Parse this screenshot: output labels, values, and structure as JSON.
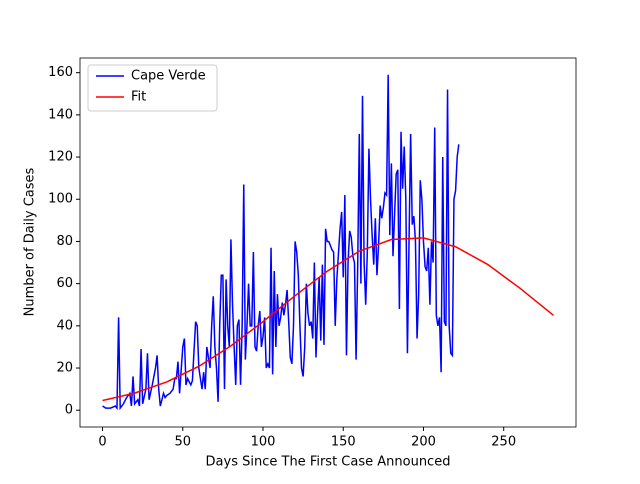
{
  "chart_data": {
    "type": "line",
    "xlabel": "Days Since The First Case Announced",
    "ylabel": "Number of Daily Cases",
    "xlim": [
      -14.05,
      295.05
    ],
    "ylim": [
      -7.95,
      166.95
    ],
    "xticks": [
      0,
      50,
      100,
      150,
      200,
      250
    ],
    "yticks": [
      0,
      20,
      40,
      60,
      80,
      100,
      120,
      140,
      160
    ],
    "legend": "upper left",
    "series": [
      {
        "name": "Cape Verde",
        "color": "#0000ff",
        "x": [
          0,
          2,
          5,
          8,
          9,
          10,
          11,
          13,
          15,
          17,
          18,
          19,
          20,
          22,
          23,
          24,
          25,
          27,
          28,
          29,
          31,
          33,
          34,
          35,
          36,
          38,
          39,
          40,
          42,
          44,
          45,
          46,
          47,
          48,
          50,
          51,
          52,
          53,
          55,
          56,
          58,
          59,
          60,
          61,
          62,
          63,
          64,
          65,
          66,
          67,
          68,
          69,
          70,
          71,
          72,
          73,
          74,
          75,
          76,
          77,
          78,
          79,
          80,
          81,
          82,
          83,
          84,
          85,
          86,
          87,
          88,
          89,
          90,
          91,
          92,
          93,
          94,
          95,
          96,
          97,
          98,
          99,
          100,
          101,
          102,
          103,
          104,
          105,
          106,
          107,
          108,
          109,
          110,
          111,
          112,
          113,
          114,
          115,
          116,
          117,
          118,
          119,
          120,
          121,
          122,
          123,
          124,
          125,
          126,
          127,
          128,
          129,
          130,
          131,
          132,
          133,
          134,
          135,
          136,
          137,
          138,
          139,
          140,
          141,
          142,
          143,
          144,
          145,
          146,
          147,
          148,
          149,
          150,
          151,
          152,
          153,
          154,
          155,
          156,
          157,
          158,
          159,
          160,
          161,
          162,
          163,
          164,
          165,
          166,
          167,
          168,
          169,
          170,
          171,
          172,
          173,
          174,
          175,
          176,
          177,
          178,
          179,
          180,
          181,
          182,
          183,
          184,
          185,
          186,
          187,
          188,
          189,
          190,
          191,
          192,
          193,
          194,
          195,
          196,
          197,
          198,
          199,
          200,
          201,
          202,
          203,
          204,
          205,
          206,
          207,
          208,
          209,
          210,
          211,
          212,
          213,
          214,
          215,
          216,
          217,
          218,
          219,
          220,
          221,
          222
        ],
        "values": [
          2,
          1,
          1,
          2,
          1,
          44,
          1,
          3,
          6,
          8,
          2,
          16,
          3,
          5,
          2,
          29,
          3,
          10,
          27,
          5,
          12,
          20,
          26,
          10,
          2,
          8,
          6,
          7,
          8,
          10,
          15,
          15,
          23,
          8,
          30,
          34,
          12,
          15,
          12,
          14,
          42,
          40,
          20,
          15,
          10,
          18,
          10,
          30,
          25,
          20,
          40,
          54,
          30,
          20,
          4,
          40,
          64,
          64,
          10,
          62,
          40,
          30,
          81,
          50,
          30,
          12,
          40,
          43,
          12,
          40,
          107,
          24,
          40,
          60,
          40,
          40,
          75,
          30,
          28,
          40,
          47,
          30,
          35,
          44,
          20,
          22,
          20,
          77,
          17,
          66,
          30,
          55,
          40,
          44,
          51,
          45,
          50,
          57,
          42,
          25,
          22,
          40,
          80,
          75,
          64,
          40,
          20,
          16,
          30,
          60,
          46,
          40,
          42,
          34,
          70,
          25,
          46,
          63,
          33,
          69,
          31,
          86,
          80,
          80,
          78,
          76,
          75,
          40,
          62,
          74,
          86,
          94,
          63,
          102,
          26,
          70,
          85,
          82,
          73,
          70,
          24,
          68,
          131,
          60,
          149,
          70,
          50,
          75,
          124,
          100,
          83,
          69,
          91,
          64,
          78,
          97,
          91,
          96,
          103,
          102,
          159,
          83,
          117,
          73,
          93,
          112,
          114,
          48,
          132,
          105,
          125,
          100,
          27,
          80,
          131,
          88,
          92,
          80,
          34,
          55,
          109,
          100,
          80,
          68,
          66,
          77,
          50,
          80,
          70,
          134,
          45,
          40,
          44,
          18,
          120,
          42,
          40,
          152,
          40,
          27,
          26,
          100,
          104,
          120,
          126
        ]
      },
      {
        "name": "Fit",
        "color": "#ff0000",
        "x": [
          0,
          20,
          40,
          60,
          80,
          100,
          120,
          140,
          160,
          180,
          200,
          220,
          240,
          260,
          281
        ],
        "values": [
          4.6,
          8.1,
          13.4,
          20.8,
          30.5,
          42.0,
          54.3,
          65.9,
          75.4,
          80.9,
          81.7,
          77.5,
          69.1,
          57.9,
          45.0
        ]
      }
    ]
  }
}
